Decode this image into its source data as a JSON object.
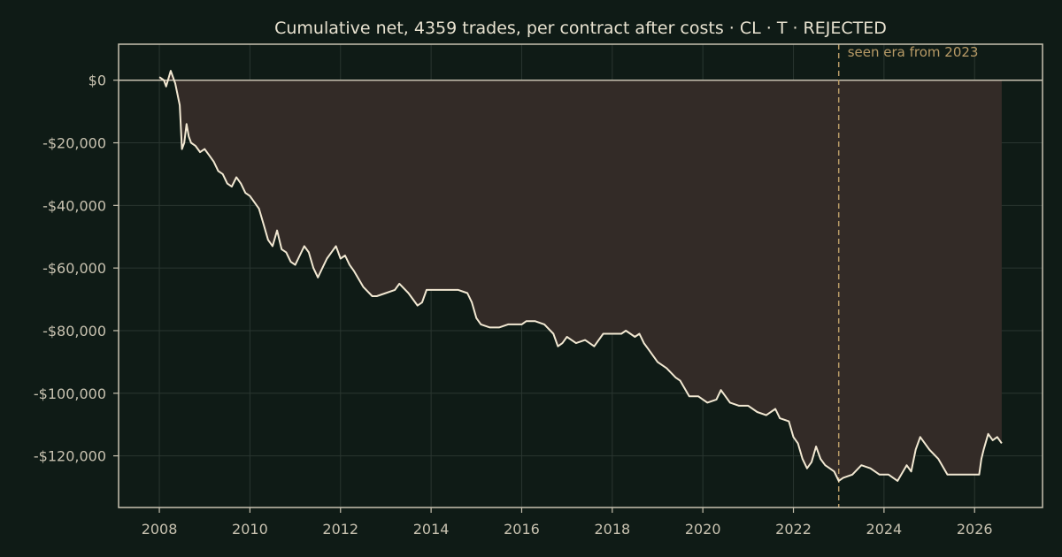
{
  "chart_data": {
    "type": "line",
    "title": "Cumulative net, 4359 trades, per contract after costs  ·  CL · T · REJECTED",
    "xlabel": "",
    "ylabel": "",
    "xlim": [
      2007.1,
      2027.5
    ],
    "ylim": [
      -136500,
      11500
    ],
    "x_ticks": [
      2008,
      2010,
      2012,
      2014,
      2016,
      2018,
      2020,
      2022,
      2024,
      2026
    ],
    "x_tick_labels": [
      "2008",
      "2010",
      "2012",
      "2014",
      "2016",
      "2018",
      "2020",
      "2022",
      "2024",
      "2026"
    ],
    "y_ticks": [
      0,
      -20000,
      -40000,
      -60000,
      -80000,
      -100000,
      -120000
    ],
    "y_tick_labels": [
      "$0",
      "-$20,000",
      "-$40,000",
      "-$60,000",
      "-$80,000",
      "-$100,000",
      "-$120,000"
    ],
    "grid": true,
    "fill_to_zero": true,
    "baseline_y": 0,
    "annotation": {
      "x": 2023.0,
      "text": "seen era from 2023"
    },
    "series": [
      {
        "x": [
          2008.0,
          2008.1,
          2008.15,
          2008.25,
          2008.35,
          2008.45,
          2008.5,
          2008.55,
          2008.6,
          2008.65,
          2008.7,
          2008.8,
          2008.9,
          2009.0,
          2009.1,
          2009.2,
          2009.3,
          2009.4,
          2009.5,
          2009.6,
          2009.7,
          2009.8,
          2009.9,
          2010.0,
          2010.1,
          2010.2,
          2010.3,
          2010.4,
          2010.5,
          2010.6,
          2010.7,
          2010.8,
          2010.9,
          2011.0,
          2011.1,
          2011.2,
          2011.3,
          2011.4,
          2011.5,
          2011.6,
          2011.7,
          2011.8,
          2011.9,
          2012.0,
          2012.1,
          2012.2,
          2012.3,
          2012.5,
          2012.7,
          2012.8,
          2013.0,
          2013.2,
          2013.3,
          2013.5,
          2013.7,
          2013.8,
          2013.9,
          2014.0,
          2014.3,
          2014.6,
          2014.8,
          2014.9,
          2015.0,
          2015.1,
          2015.3,
          2015.5,
          2015.7,
          2015.9,
          2016.0,
          2016.1,
          2016.3,
          2016.5,
          2016.7,
          2016.8,
          2016.9,
          2017.0,
          2017.2,
          2017.4,
          2017.6,
          2017.8,
          2017.9,
          2018.0,
          2018.2,
          2018.3,
          2018.5,
          2018.6,
          2018.7,
          2018.8,
          2018.9,
          2019.0,
          2019.2,
          2019.4,
          2019.5,
          2019.7,
          2019.9,
          2020.1,
          2020.3,
          2020.4,
          2020.6,
          2020.8,
          2021.0,
          2021.2,
          2021.4,
          2021.6,
          2021.7,
          2021.9,
          2022.0,
          2022.1,
          2022.2,
          2022.3,
          2022.4,
          2022.5,
          2022.6,
          2022.7,
          2022.8,
          2022.9,
          2023.0,
          2023.1,
          2023.3,
          2023.5,
          2023.7,
          2023.9,
          2024.1,
          2024.3,
          2024.5,
          2024.6,
          2024.7,
          2024.8,
          2025.0,
          2025.2,
          2025.4,
          2025.6,
          2025.8,
          2026.0,
          2026.1,
          2026.15,
          2026.2,
          2026.3,
          2026.4,
          2026.5,
          2026.6
        ],
        "y": [
          1000,
          0,
          -2000,
          3000,
          -1000,
          -8000,
          -22000,
          -20000,
          -14000,
          -18000,
          -20000,
          -21000,
          -23000,
          -22000,
          -24000,
          -26000,
          -29000,
          -30000,
          -33000,
          -34000,
          -31000,
          -33000,
          -36000,
          -37000,
          -39000,
          -41000,
          -46000,
          -51000,
          -53000,
          -48000,
          -54000,
          -55000,
          -58000,
          -59000,
          -56000,
          -53000,
          -55000,
          -60000,
          -63000,
          -60000,
          -57000,
          -55000,
          -53000,
          -57000,
          -56000,
          -59000,
          -61000,
          -66000,
          -69000,
          -69000,
          -68000,
          -67000,
          -65000,
          -68000,
          -72000,
          -71000,
          -67000,
          -67000,
          -67000,
          -67000,
          -68000,
          -71000,
          -76000,
          -78000,
          -79000,
          -79000,
          -78000,
          -78000,
          -78000,
          -77000,
          -77000,
          -78000,
          -81000,
          -85000,
          -84000,
          -82000,
          -84000,
          -83000,
          -85000,
          -81000,
          -81000,
          -81000,
          -81000,
          -80000,
          -82000,
          -81000,
          -84000,
          -86000,
          -88000,
          -90000,
          -92000,
          -95000,
          -96000,
          -101000,
          -101000,
          -103000,
          -102000,
          -99000,
          -103000,
          -104000,
          -104000,
          -106000,
          -107000,
          -105000,
          -108000,
          -109000,
          -114000,
          -116000,
          -121000,
          -124000,
          -122000,
          -117000,
          -121000,
          -123000,
          -124000,
          -125000,
          -128000,
          -127000,
          -126000,
          -123000,
          -124000,
          -126000,
          -126000,
          -128000,
          -123000,
          -125000,
          -118000,
          -114000,
          -118000,
          -121000,
          -126000,
          -126000,
          -126000,
          -126000,
          -126000,
          -121000,
          -118000,
          -113000,
          -115000,
          -114000,
          -116000
        ]
      }
    ],
    "colors": {
      "background": "#0f1b16",
      "line": "#f2e8d2",
      "fill": "#332b27",
      "axis": "#c8c2b0",
      "grid": "#2a3630",
      "annotation": "#b79a66"
    }
  }
}
